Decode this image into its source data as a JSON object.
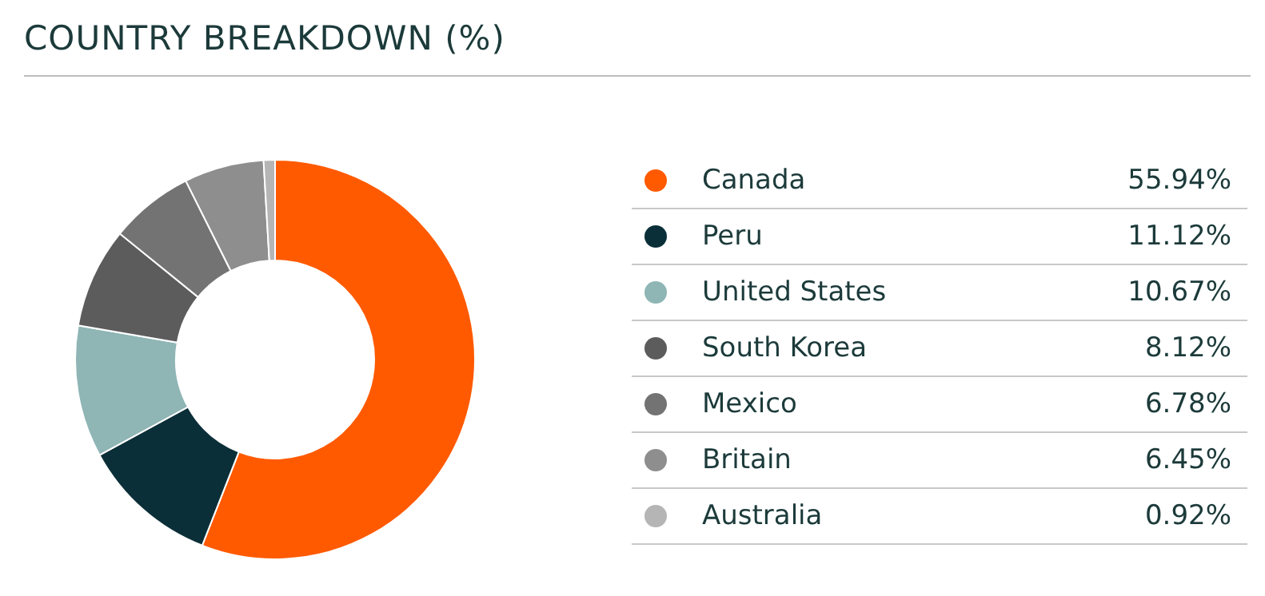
{
  "chart_data": {
    "type": "donut",
    "title": "COUNTRY BREAKDOWN (%)",
    "categories": [
      "Canada",
      "Peru",
      "United States",
      "South Korea",
      "Mexico",
      "Britain",
      "Australia"
    ],
    "values": [
      55.94,
      11.12,
      10.67,
      8.12,
      6.78,
      6.45,
      0.92
    ],
    "colors": [
      "#ff5a00",
      "#0b2f38",
      "#8fb5b5",
      "#5c5c5c",
      "#737373",
      "#8e8e8e",
      "#b5b5b5"
    ],
    "value_labels": [
      "55.94%",
      "11.12%",
      "10.67%",
      "8.12%",
      "6.78%",
      "6.45%",
      "0.92%"
    ],
    "legend": "right"
  }
}
